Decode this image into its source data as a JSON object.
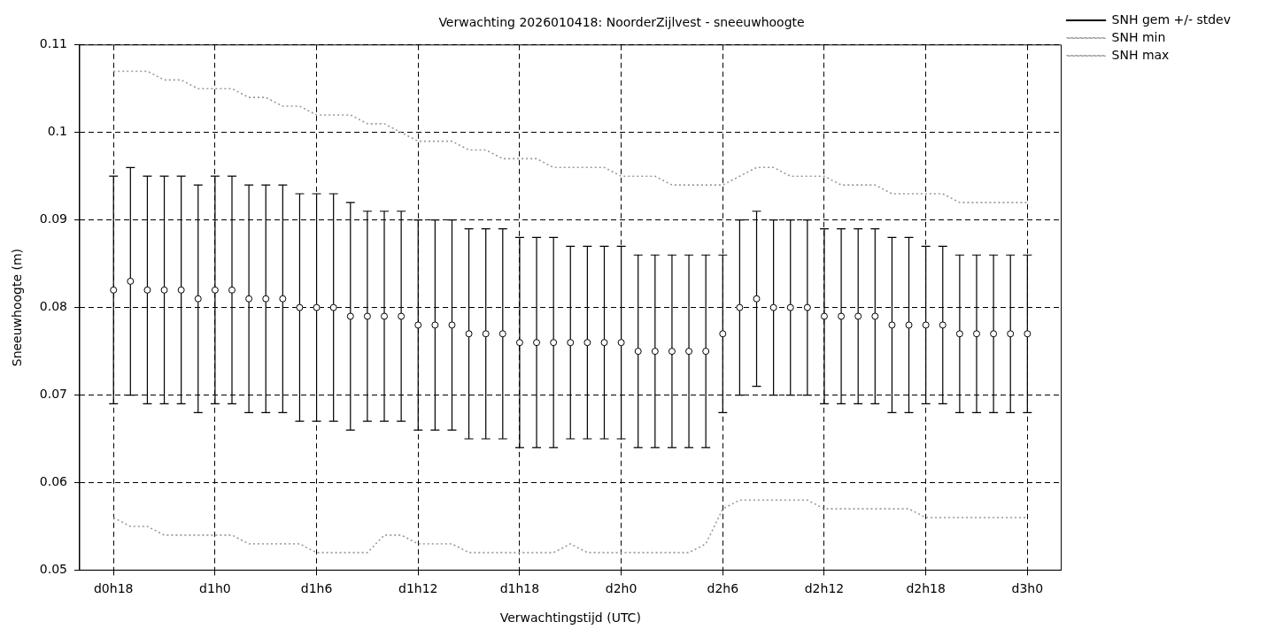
{
  "chart_data": {
    "type": "scatter",
    "title": "Verwachting 2026010418: NoorderZijlvest - sneeuwhoogte",
    "xlabel": "Verwachtingstijd (UTC)",
    "ylabel": "Sneeuwhoogte (m)",
    "categories": [
      "d0h18",
      null,
      null,
      null,
      null,
      null,
      "d1h0",
      null,
      null,
      null,
      null,
      null,
      "d1h6",
      null,
      null,
      null,
      null,
      null,
      "d1h12",
      null,
      null,
      null,
      null,
      null,
      "d1h18",
      null,
      null,
      null,
      null,
      null,
      "d2h0",
      null,
      null,
      null,
      null,
      null,
      "d2h6",
      null,
      null,
      null,
      null,
      null,
      "d2h12",
      null,
      null,
      null,
      null,
      null,
      "d2h18",
      null,
      null,
      null,
      null,
      null,
      "d3h0"
    ],
    "series": [
      {
        "name": "SNH gem +/- stdev",
        "color": "#000000",
        "marker": "circle",
        "values": [
          0.082,
          0.083,
          0.082,
          0.082,
          0.082,
          0.081,
          0.082,
          0.082,
          0.081,
          0.081,
          0.081,
          0.08,
          0.08,
          0.08,
          0.079,
          0.079,
          0.079,
          0.079,
          0.078,
          0.078,
          0.078,
          0.077,
          0.077,
          0.077,
          0.076,
          0.076,
          0.076,
          0.076,
          0.076,
          0.076,
          0.076,
          0.075,
          0.075,
          0.075,
          0.075,
          0.075,
          0.077,
          0.08,
          0.081,
          0.08,
          0.08,
          0.08,
          0.079,
          0.079,
          0.079,
          0.079,
          0.078,
          0.078,
          0.078,
          0.078,
          0.077,
          0.077,
          0.077,
          0.077,
          0.077
        ],
        "errors": [
          [
            0.069,
            0.095
          ],
          [
            0.07,
            0.096
          ],
          [
            0.069,
            0.095
          ],
          [
            0.069,
            0.095
          ],
          [
            0.069,
            0.095
          ],
          [
            0.068,
            0.094
          ],
          [
            0.069,
            0.095
          ],
          [
            0.069,
            0.095
          ],
          [
            0.068,
            0.094
          ],
          [
            0.068,
            0.094
          ],
          [
            0.068,
            0.094
          ],
          [
            0.067,
            0.093
          ],
          [
            0.067,
            0.093
          ],
          [
            0.067,
            0.093
          ],
          [
            0.066,
            0.092
          ],
          [
            0.067,
            0.091
          ],
          [
            0.067,
            0.091
          ],
          [
            0.067,
            0.091
          ],
          [
            0.066,
            0.09
          ],
          [
            0.066,
            0.09
          ],
          [
            0.066,
            0.09
          ],
          [
            0.065,
            0.089
          ],
          [
            0.065,
            0.089
          ],
          [
            0.065,
            0.089
          ],
          [
            0.064,
            0.088
          ],
          [
            0.064,
            0.088
          ],
          [
            0.064,
            0.088
          ],
          [
            0.065,
            0.087
          ],
          [
            0.065,
            0.087
          ],
          [
            0.065,
            0.087
          ],
          [
            0.065,
            0.087
          ],
          [
            0.064,
            0.086
          ],
          [
            0.064,
            0.086
          ],
          [
            0.064,
            0.086
          ],
          [
            0.064,
            0.086
          ],
          [
            0.064,
            0.086
          ],
          [
            0.068,
            0.086
          ],
          [
            0.07,
            0.09
          ],
          [
            0.071,
            0.091
          ],
          [
            0.07,
            0.09
          ],
          [
            0.07,
            0.09
          ],
          [
            0.07,
            0.09
          ],
          [
            0.069,
            0.089
          ],
          [
            0.069,
            0.089
          ],
          [
            0.069,
            0.089
          ],
          [
            0.069,
            0.089
          ],
          [
            0.068,
            0.088
          ],
          [
            0.068,
            0.088
          ],
          [
            0.069,
            0.087
          ],
          [
            0.069,
            0.087
          ],
          [
            0.068,
            0.086
          ],
          [
            0.068,
            0.086
          ],
          [
            0.068,
            0.086
          ],
          [
            0.068,
            0.086
          ],
          [
            0.068,
            0.086
          ]
        ]
      },
      {
        "name": "SNH min",
        "type": "line",
        "color": "#999999",
        "marker": "none",
        "line_style": "dotted",
        "values": [
          0.056,
          0.055,
          0.055,
          0.054,
          0.054,
          0.054,
          0.054,
          0.054,
          0.053,
          0.053,
          0.053,
          0.053,
          0.052,
          0.052,
          0.052,
          0.052,
          0.054,
          0.054,
          0.053,
          0.053,
          0.053,
          0.052,
          0.052,
          0.052,
          0.052,
          0.052,
          0.052,
          0.053,
          0.052,
          0.052,
          0.052,
          0.052,
          0.052,
          0.052,
          0.052,
          0.053,
          0.057,
          0.058,
          0.058,
          0.058,
          0.058,
          0.058,
          0.057,
          0.057,
          0.057,
          0.057,
          0.057,
          0.057,
          0.056,
          0.056,
          0.056,
          0.056,
          0.056,
          0.056,
          0.056
        ]
      },
      {
        "name": "SNH max",
        "type": "line",
        "color": "#999999",
        "marker": "none",
        "line_style": "dotted",
        "values": [
          0.107,
          0.107,
          0.107,
          0.106,
          0.106,
          0.105,
          0.105,
          0.105,
          0.104,
          0.104,
          0.103,
          0.103,
          0.102,
          0.102,
          0.102,
          0.101,
          0.101,
          0.1,
          0.099,
          0.099,
          0.099,
          0.098,
          0.098,
          0.097,
          0.097,
          0.097,
          0.096,
          0.096,
          0.096,
          0.096,
          0.095,
          0.095,
          0.095,
          0.094,
          0.094,
          0.094,
          0.094,
          0.095,
          0.096,
          0.096,
          0.095,
          0.095,
          0.095,
          0.094,
          0.094,
          0.094,
          0.093,
          0.093,
          0.093,
          0.093,
          0.092,
          0.092,
          0.092,
          0.092,
          0.092
        ]
      }
    ],
    "ylim": [
      0.05,
      0.11
    ],
    "yticks": [
      0.05,
      0.06,
      0.07,
      0.08,
      0.09,
      0.1,
      0.11
    ],
    "grid": true,
    "legend": "top right"
  }
}
